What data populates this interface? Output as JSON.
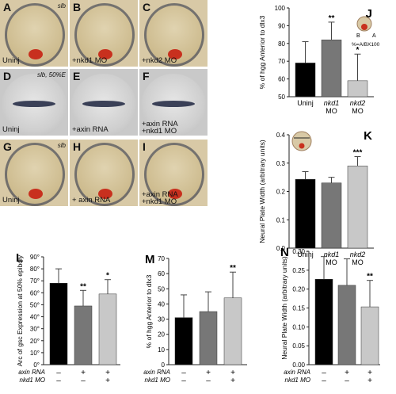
{
  "micrographs": [
    {
      "label": "A",
      "tag": "slb",
      "caption": "Uninj",
      "kind": "top"
    },
    {
      "label": "B",
      "tag": "",
      "caption": "+nkd1 MO",
      "kind": "top"
    },
    {
      "label": "C",
      "tag": "",
      "caption": "+nkd2 MO",
      "kind": "top"
    },
    {
      "label": "D",
      "tag": "slb, 50%E",
      "caption": "Uninj",
      "kind": "side"
    },
    {
      "label": "E",
      "tag": "",
      "caption": "+axin RNA",
      "kind": "side"
    },
    {
      "label": "F",
      "tag": "",
      "caption": "+axin RNA +nkd1 MO",
      "kind": "side"
    },
    {
      "label": "G",
      "tag": "slb",
      "caption": "Uninj",
      "kind": "top"
    },
    {
      "label": "H",
      "tag": "",
      "caption": "+ axin RNA",
      "kind": "top"
    },
    {
      "label": "I",
      "tag": "",
      "caption": "+axin RNA +nkd1 MO",
      "kind": "top"
    }
  ],
  "colors": {
    "black": "#000000",
    "dark_gray": "#777777",
    "light_gray": "#c8c8c8",
    "embryo": "#cdbb8e",
    "red": "#c8301e",
    "stain": "#1d2440"
  },
  "chart_data": [
    {
      "panel": "J",
      "type": "bar",
      "ylabel": "% of hgg Anterior to dlx3",
      "categories": [
        "Uninj",
        "nkd1 MO",
        "nkd2 MO"
      ],
      "values": [
        69,
        82,
        59
      ],
      "errors": [
        12,
        10,
        15
      ],
      "significance": [
        "",
        "**",
        "*"
      ],
      "ylim": [
        50,
        100
      ],
      "yticks": [
        50,
        60,
        70,
        80,
        90,
        100
      ],
      "inset_text": [
        "B",
        "A",
        "%=A/BX100"
      ]
    },
    {
      "panel": "K",
      "type": "bar",
      "ylabel": "Neural Plate Width (arbitrary units)",
      "categories": [
        "Uninj",
        "nkd1 MO",
        "nkd2 MO"
      ],
      "values": [
        0.243,
        0.23,
        0.29
      ],
      "errors": [
        0.027,
        0.02,
        0.033
      ],
      "significance": [
        "",
        "",
        "***"
      ],
      "ylim": [
        0,
        0.4
      ],
      "yticks": [
        0,
        0.1,
        0.2,
        0.3,
        0.4
      ]
    },
    {
      "panel": "L",
      "type": "bar",
      "ylabel": "Arc of gsc Expression at 50% epiboly",
      "values": [
        68,
        49,
        59
      ],
      "errors": [
        12,
        13,
        12
      ],
      "significance": [
        "",
        "**",
        "*"
      ],
      "ylim": [
        0,
        90
      ],
      "yticks": [
        0,
        10,
        20,
        30,
        40,
        50,
        60,
        70,
        80,
        90
      ],
      "ytick_suffix": "°",
      "rows": [
        {
          "label": "axin RNA",
          "marks": [
            "–",
            "+",
            "+"
          ]
        },
        {
          "label": "nkd1 MO",
          "marks": [
            "–",
            "–",
            "+"
          ]
        }
      ]
    },
    {
      "panel": "M",
      "type": "bar",
      "ylabel": "% of hgg Anterior to dlx3",
      "values": [
        31,
        35,
        44
      ],
      "errors": [
        15,
        13,
        17
      ],
      "significance": [
        "",
        "",
        "**"
      ],
      "ylim": [
        0,
        70
      ],
      "yticks": [
        0,
        10,
        20,
        30,
        40,
        50,
        60,
        70
      ],
      "rows": [
        {
          "label": "axin RNA",
          "marks": [
            "–",
            "+",
            "+"
          ]
        },
        {
          "label": "nkd1 MO",
          "marks": [
            "–",
            "–",
            "+"
          ]
        }
      ]
    },
    {
      "panel": "N",
      "type": "bar",
      "ylabel": "Neural Plate Width (arbitrary units)",
      "values": [
        0.226,
        0.21,
        0.153
      ],
      "errors": [
        0.06,
        0.07,
        0.07
      ],
      "significance": [
        "",
        "",
        "**"
      ],
      "ylim": [
        0,
        0.3
      ],
      "yticks": [
        0,
        0.05,
        0.1,
        0.15,
        0.2,
        0.25,
        0.3
      ],
      "rows": [
        {
          "label": "axin RNA",
          "marks": [
            "–",
            "+",
            "+"
          ]
        },
        {
          "label": "nkd1 MO",
          "marks": [
            "–",
            "–",
            "+"
          ]
        }
      ]
    }
  ]
}
